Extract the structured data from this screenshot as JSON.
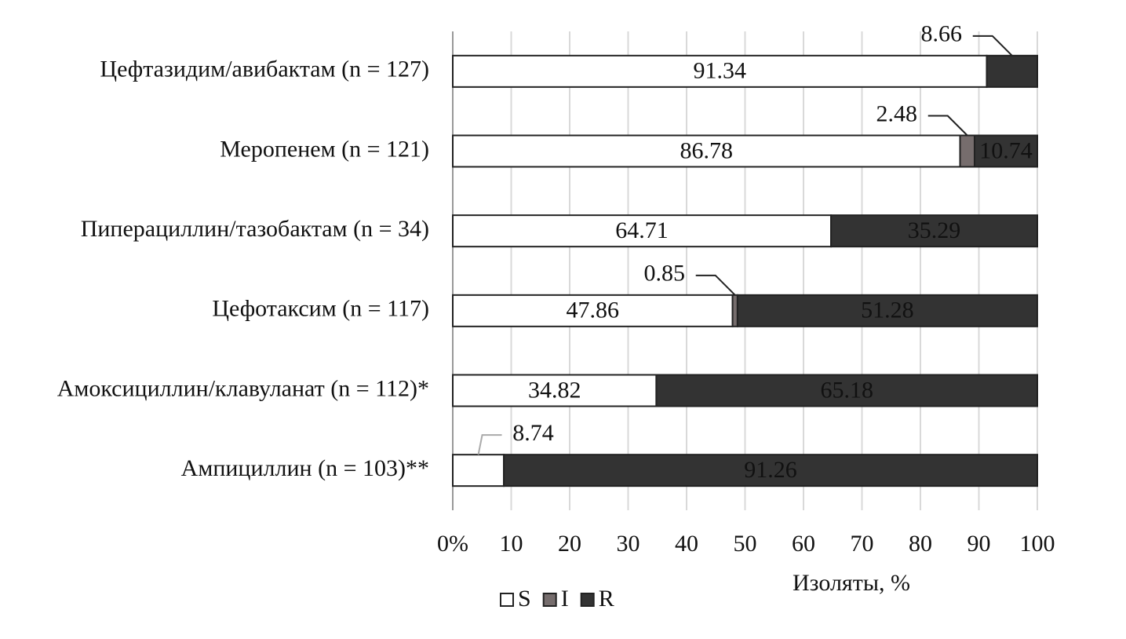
{
  "chart_data": {
    "type": "stacked-bar-horizontal",
    "categories": [
      "Цефтазидим/авибактам (n = 127)",
      "Меропенем (n = 121)",
      "Пиперациллин/тазобактам (n = 34)",
      "Цефотаксим (n = 117)",
      "Амоксициллин/клавуланат (n = 112)*",
      "Ампициллин (n = 103)**"
    ],
    "series": [
      {
        "name": "S",
        "color": "#ffffff",
        "values": [
          91.34,
          86.78,
          64.71,
          47.86,
          34.82,
          8.74
        ]
      },
      {
        "name": "I",
        "color": "#766d6d",
        "values": [
          null,
          2.48,
          null,
          0.85,
          null,
          null
        ]
      },
      {
        "name": "R",
        "color": "#333333",
        "values": [
          8.66,
          10.74,
          35.29,
          51.28,
          65.18,
          91.26
        ]
      }
    ],
    "xlim": [
      0,
      100
    ],
    "xticks": [
      {
        "value": 0,
        "label": "0%"
      },
      10,
      20,
      30,
      40,
      50,
      60,
      70,
      80,
      90,
      100
    ],
    "xlabel": "Изоляты, %",
    "grid": true,
    "legend": "bottom"
  }
}
